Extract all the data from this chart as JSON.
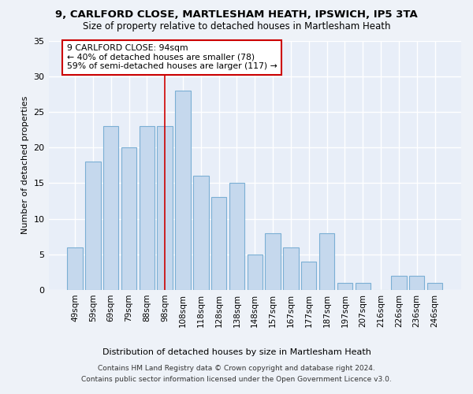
{
  "title1": "9, CARLFORD CLOSE, MARTLESHAM HEATH, IPSWICH, IP5 3TA",
  "title2": "Size of property relative to detached houses in Martlesham Heath",
  "xlabel": "Distribution of detached houses by size in Martlesham Heath",
  "ylabel": "Number of detached properties",
  "categories": [
    "49sqm",
    "59sqm",
    "69sqm",
    "79sqm",
    "88sqm",
    "98sqm",
    "108sqm",
    "118sqm",
    "128sqm",
    "138sqm",
    "148sqm",
    "157sqm",
    "167sqm",
    "177sqm",
    "187sqm",
    "197sqm",
    "207sqm",
    "216sqm",
    "226sqm",
    "236sqm",
    "246sqm"
  ],
  "values": [
    6,
    18,
    23,
    20,
    23,
    23,
    28,
    16,
    13,
    15,
    5,
    8,
    6,
    4,
    8,
    1,
    1,
    0,
    2,
    2,
    1
  ],
  "bar_color": "#c5d8ed",
  "bar_edge_color": "#7bafd4",
  "annotation_line1": "9 CARLFORD CLOSE: 94sqm",
  "annotation_line2": "← 40% of detached houses are smaller (78)",
  "annotation_line3": "59% of semi-detached houses are larger (117) →",
  "vline_x": 5.0,
  "vline_color": "#cc0000",
  "ylim": [
    0,
    35
  ],
  "yticks": [
    0,
    5,
    10,
    15,
    20,
    25,
    30,
    35
  ],
  "fig_bg": "#eef2f8",
  "ax_bg": "#e8eef8",
  "grid_color": "#ffffff",
  "footer1": "Contains HM Land Registry data © Crown copyright and database right 2024.",
  "footer2": "Contains public sector information licensed under the Open Government Licence v3.0."
}
